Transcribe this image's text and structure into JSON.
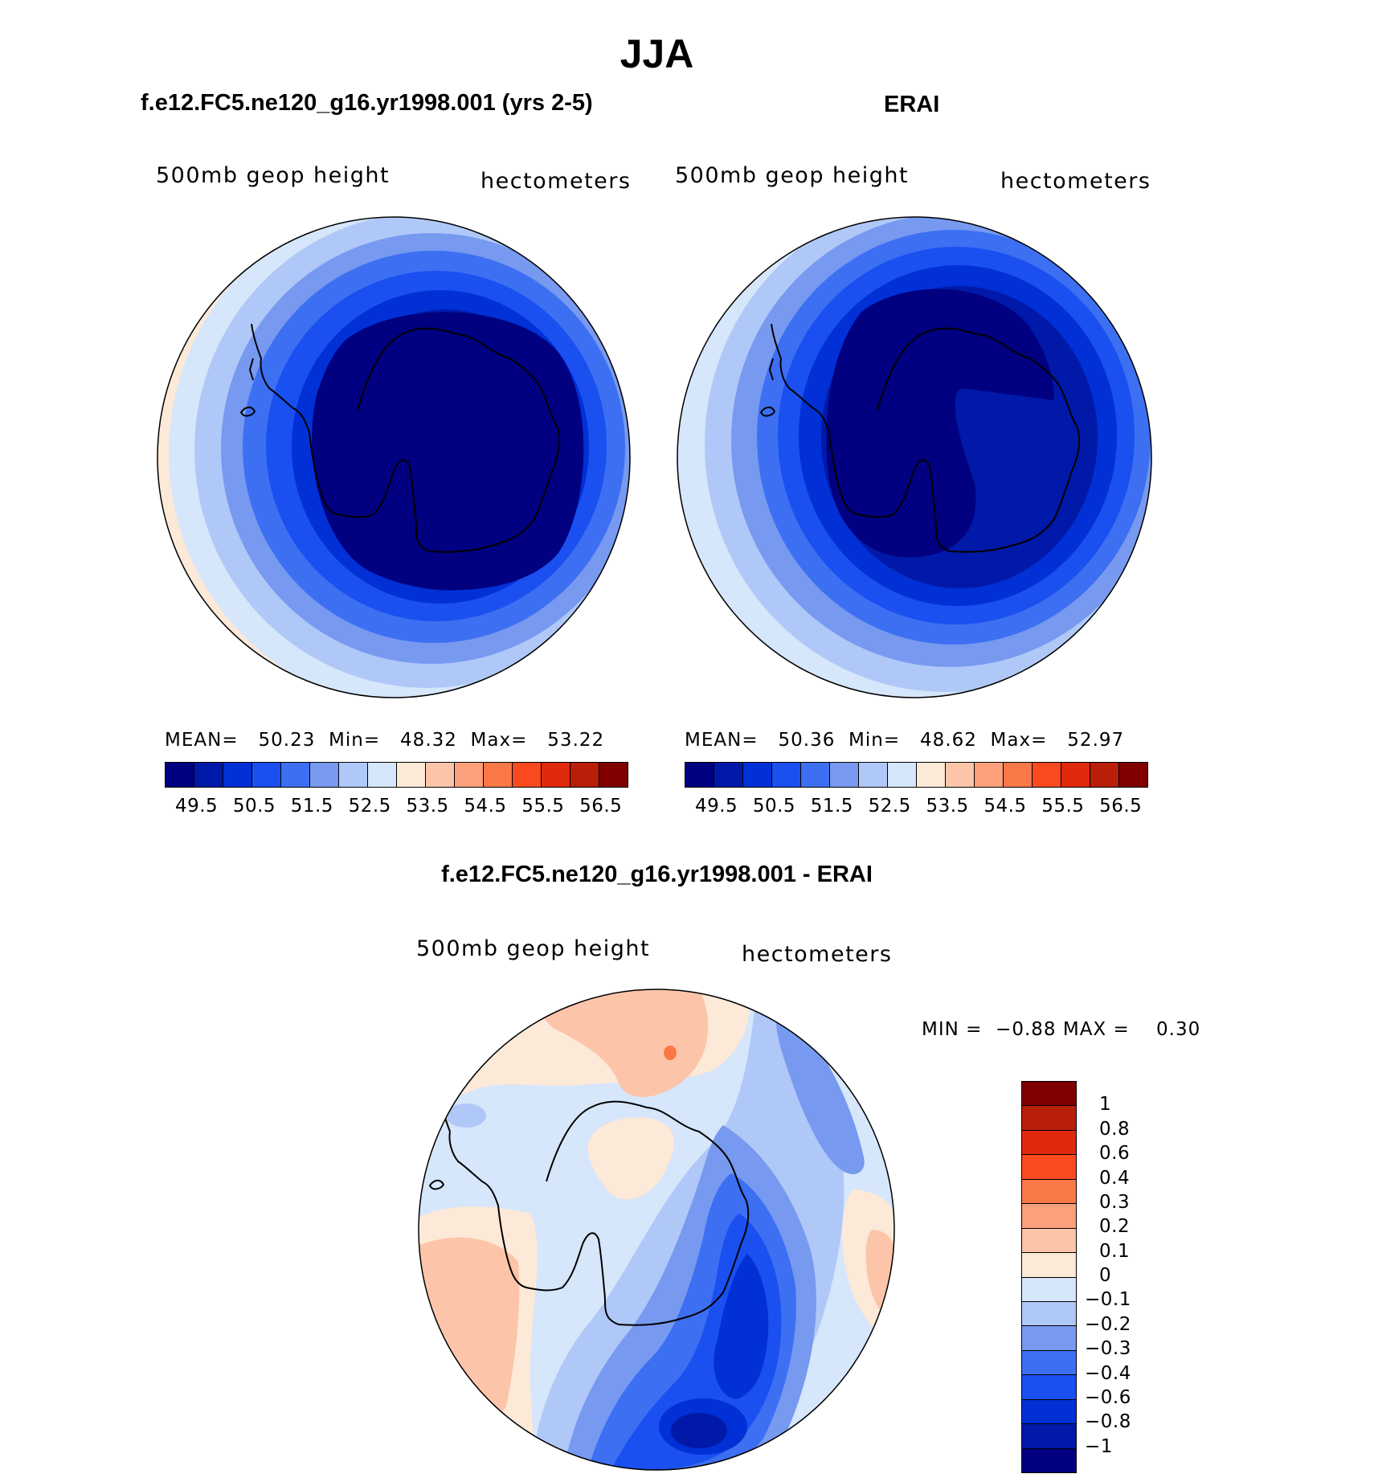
{
  "main_title": "JJA",
  "panels": [
    {
      "id": "model",
      "title": "f.e12.FC5.ne120_g16.yr1998.001 (yrs 2-5)",
      "variable": "500mb geop height",
      "units": "hectometers",
      "stats": {
        "mean_label": "MEAN=",
        "mean": "50.23",
        "min_label": "Min=",
        "min": "48.32",
        "max_label": "Max=",
        "max": "53.22"
      }
    },
    {
      "id": "erai",
      "title": "ERAI",
      "variable": "500mb geop height",
      "units": "hectometers",
      "stats": {
        "mean_label": "MEAN=",
        "mean": "50.36",
        "min_label": "Min=",
        "min": "48.62",
        "max_label": "Max=",
        "max": "52.97"
      }
    }
  ],
  "colorbar_top": {
    "colors": [
      "#000080",
      "#0019a8",
      "#0030d6",
      "#1a4ff0",
      "#3d6ff2",
      "#7799f0",
      "#b0c8f8",
      "#d6e6fb",
      "#fde9d8",
      "#fcc5aa",
      "#fba07a",
      "#fa7748",
      "#fa4a1e",
      "#e02a0e",
      "#b81e08",
      "#800000"
    ],
    "labels": [
      "49.5",
      "50.5",
      "51.5",
      "52.5",
      "53.5",
      "54.5",
      "55.5",
      "56.5"
    ]
  },
  "diff_panel": {
    "title": "f.e12.FC5.ne120_g16.yr1998.001 - ERAI",
    "variable": "500mb geop height",
    "units": "hectometers",
    "stats": {
      "min_label": "MIN =",
      "min": "−0.88",
      "max_label": "MAX =",
      "max": "0.30"
    }
  },
  "colorbar_diff": {
    "colors": [
      "#800000",
      "#b81e08",
      "#e02a0e",
      "#fa4a1e",
      "#fa7748",
      "#fba07a",
      "#fcc5aa",
      "#fde9d8",
      "#d6e6fb",
      "#b0c8f8",
      "#7799f0",
      "#3d6ff2",
      "#1a4ff0",
      "#0030d6",
      "#0019a8",
      "#000080"
    ],
    "labels": [
      "1",
      "0.8",
      "0.6",
      "0.4",
      "0.3",
      "0.2",
      "0.1",
      "0",
      "−0.1",
      "−0.2",
      "−0.3",
      "−0.4",
      "−0.6",
      "−0.8",
      "−1"
    ]
  }
}
